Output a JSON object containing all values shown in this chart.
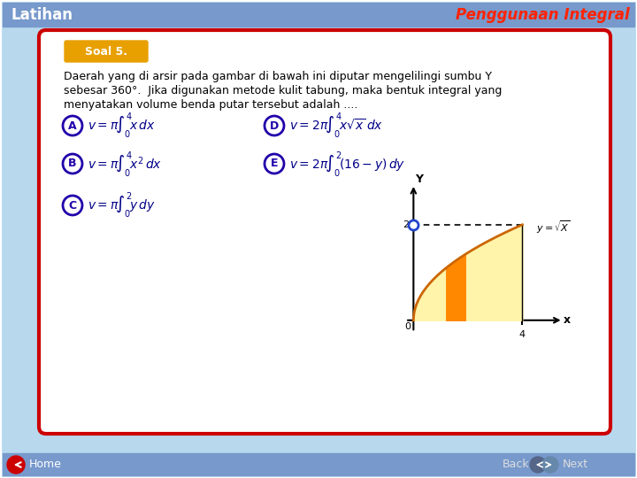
{
  "title_left": "Latihan",
  "title_right": "Penggunaan Integral",
  "soal_label": "Soal 5.",
  "question_line1": "Daerah yang di arsir pada gambar di bawah ini diputar mengelilingi sumbu Y",
  "question_line2": "sebesar 360°.  Jika digunakan metode kulit tabung, maka bentuk integral yang",
  "question_line3": "menyatakan volume benda putar tersebut adalah ....",
  "bg_color": "#b8d8ee",
  "header_bg": "#7799cc",
  "header_text_left_color": "#ffffff",
  "header_text_right_color": "#ff2200",
  "soal_bg": "#e8a000",
  "soal_text_color": "#ffffff",
  "card_bg": "#ffffff",
  "card_border_color": "#cc0000",
  "option_circle_color": "#2200aa",
  "option_text_color": "#000088",
  "bottom_bar_color": "#7799cc",
  "graph_fill_color": "#fff4aa",
  "graph_strip_color": "#ff8800",
  "graph_curve_color": "#cc6600"
}
